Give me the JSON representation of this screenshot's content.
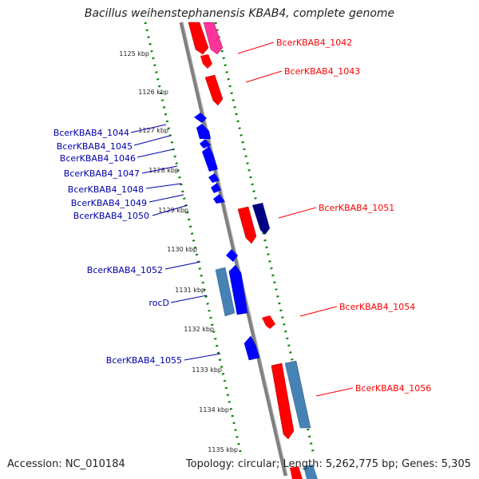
{
  "title": "Bacillus weihenstephanensis KBAB4, complete genome",
  "footer": {
    "accession": "Accession: NC_010184",
    "topology": "Topology: circular; Length: 5,262,775 bp; Genes: 5,305"
  },
  "colors": {
    "forward": "#ff0000",
    "forward_alt": "#ff3399",
    "reverse": "#0000ff",
    "reverse_dark": "#000080",
    "rna": "#4682b4",
    "backbone": "#808080",
    "ticks": "#008000",
    "label_right": "#ff0000",
    "label_left": "#0000aa"
  },
  "scale": {
    "unit": "kbp",
    "ticks": [
      "1125 kbp",
      "1126 kbp",
      "1127 kbp",
      "1128 kbp",
      "1129 kbp",
      "1130 kbp",
      "1131 kbp",
      "1132 kbp",
      "1133 kbp",
      "1134 kbp",
      "1135 kbp"
    ]
  },
  "genes_right": [
    "BcerKBAB4_1042",
    "BcerKBAB4_1043",
    "BcerKBAB4_1051",
    "BcerKBAB4_1054",
    "BcerKBAB4_1056"
  ],
  "genes_left": [
    "BcerKBAB4_1044",
    "BcerKBAB4_1045",
    "BcerKBAB4_1046",
    "BcerKBAB4_1047",
    "BcerKBAB4_1048",
    "BcerKBAB4_1049",
    "BcerKBAB4_1050",
    "BcerKBAB4_1052",
    "rocD",
    "BcerKBAB4_1055"
  ]
}
